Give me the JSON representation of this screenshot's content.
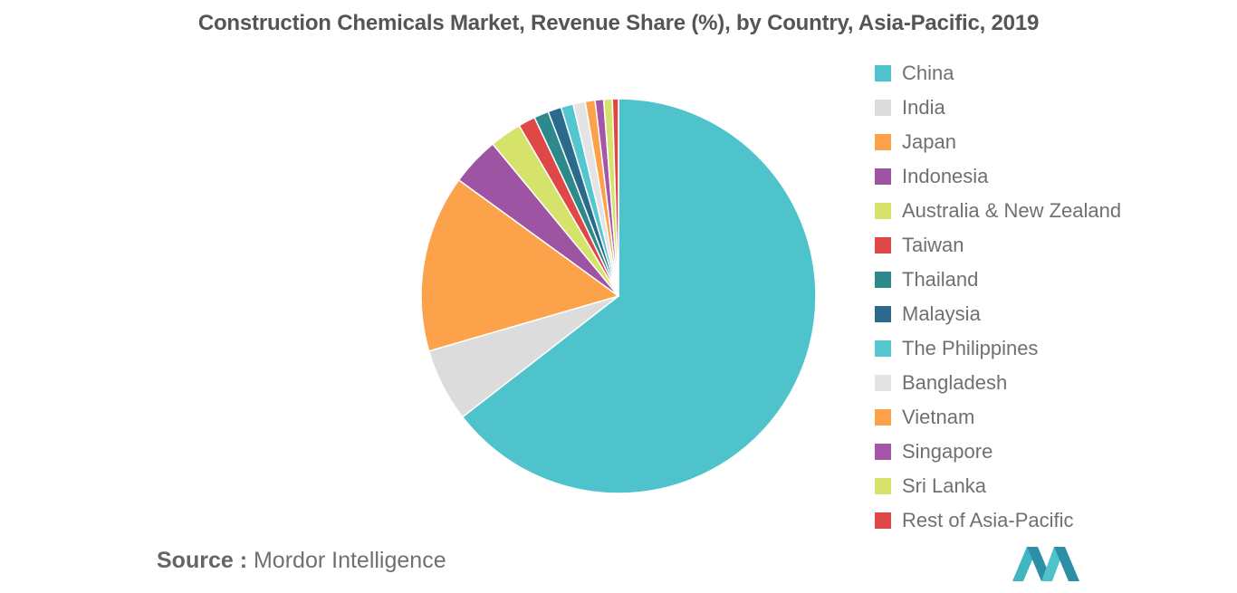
{
  "page": {
    "title": "Construction Chemicals Market, Revenue Share (%), by Country, Asia-Pacific, 2019",
    "source_prefix": "Source :",
    "source_name": "Mordor Intelligence",
    "logo_icon": "mordor-intelligence-logo-icon",
    "logo_color": "#4FC3CC"
  },
  "chart_data": {
    "type": "pie",
    "title": "Construction Chemicals Market, Revenue Share (%), by Country, Asia-Pacific, 2019",
    "unit": "%",
    "legend_position": "right",
    "start": "12 o'clock, clockwise",
    "categories": [
      "China",
      "India",
      "Japan",
      "Indonesia",
      "Australia & New Zealand",
      "Taiwan",
      "Thailand",
      "Malaysia",
      "The Philippines",
      "Bangladesh",
      "Vietnam",
      "Singapore",
      "Sri Lanka",
      "Rest of Asia-Pacific"
    ],
    "values": [
      64.5,
      6.0,
      14.5,
      4.0,
      2.6,
      1.4,
      1.2,
      1.1,
      1.0,
      1.0,
      0.8,
      0.7,
      0.7,
      0.5
    ],
    "colors": [
      "#4FC3CC",
      "#DCDCDC",
      "#FBA24B",
      "#9C54A3",
      "#D5E36A",
      "#E04848",
      "#2E8A8A",
      "#2B6A8C",
      "#54C6CE",
      "#E4E4E4",
      "#FBA24B",
      "#A556A8",
      "#D5E36A",
      "#E04848"
    ]
  }
}
